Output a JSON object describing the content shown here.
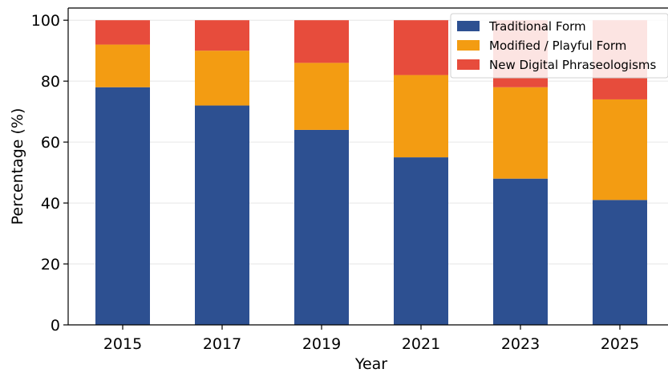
{
  "chart_data": {
    "type": "bar",
    "stacked": true,
    "title": "",
    "xlabel": "Year",
    "ylabel": "Percentage (%)",
    "categories": [
      "2015",
      "2017",
      "2019",
      "2021",
      "2023",
      "2025"
    ],
    "series": [
      {
        "name": "Traditional Form",
        "color": "#2d5091",
        "values": [
          78,
          72,
          64,
          55,
          48,
          41
        ]
      },
      {
        "name": "Modified / Playful Form",
        "color": "#f39c12",
        "values": [
          14,
          18,
          22,
          27,
          30,
          33
        ]
      },
      {
        "name": "New Digital Phraseologisms",
        "color": "#e74c3c",
        "values": [
          8,
          10,
          14,
          18,
          22,
          26
        ]
      }
    ],
    "ylim": [
      0,
      104
    ],
    "yticks": [
      0,
      20,
      40,
      60,
      80,
      100
    ],
    "grid": "horizontal",
    "legend_position": "top-right"
  }
}
